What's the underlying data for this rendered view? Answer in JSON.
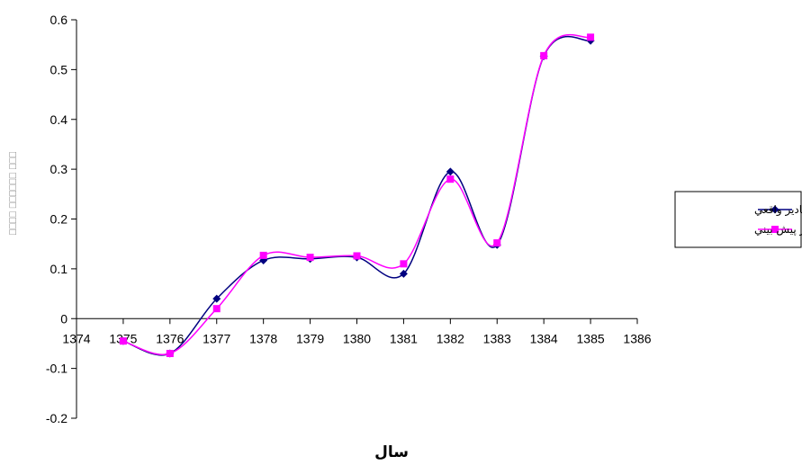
{
  "chart_data": {
    "type": "line",
    "title": "",
    "xlabel": "سال",
    "ylabel": "⎕⎕⎕⎕ ⎕⎕⎕⎕⎕⎕ ⎕⎕⎕",
    "xlim": [
      1374,
      1386
    ],
    "ylim": [
      -0.2,
      0.6
    ],
    "x_ticks": [
      "1374",
      "1375",
      "1376",
      "1377",
      "1378",
      "1379",
      "1380",
      "1381",
      "1382",
      "1383",
      "1384",
      "1385",
      "1386"
    ],
    "y_ticks": [
      "0.6",
      "0.5",
      "0.4",
      "0.3",
      "0.2",
      "0.1",
      "0",
      "-0.1",
      "-0.2"
    ],
    "x": [
      1375,
      1376,
      1377,
      1378,
      1379,
      1380,
      1381,
      1382,
      1383,
      1384,
      1385
    ],
    "series": [
      {
        "name": "مقادير واقعي",
        "color": "#000080",
        "marker": "diamond",
        "values": [
          -0.045,
          -0.07,
          0.04,
          0.117,
          0.12,
          0.123,
          0.09,
          0.295,
          0.148,
          0.527,
          0.558
        ]
      },
      {
        "name": "مقادير پيش بيني",
        "color": "#ff00ff",
        "marker": "square",
        "values": [
          -0.045,
          -0.07,
          0.02,
          0.127,
          0.123,
          0.126,
          0.11,
          0.28,
          0.152,
          0.528,
          0.565
        ]
      }
    ],
    "legend_position": "right",
    "grid": false
  }
}
